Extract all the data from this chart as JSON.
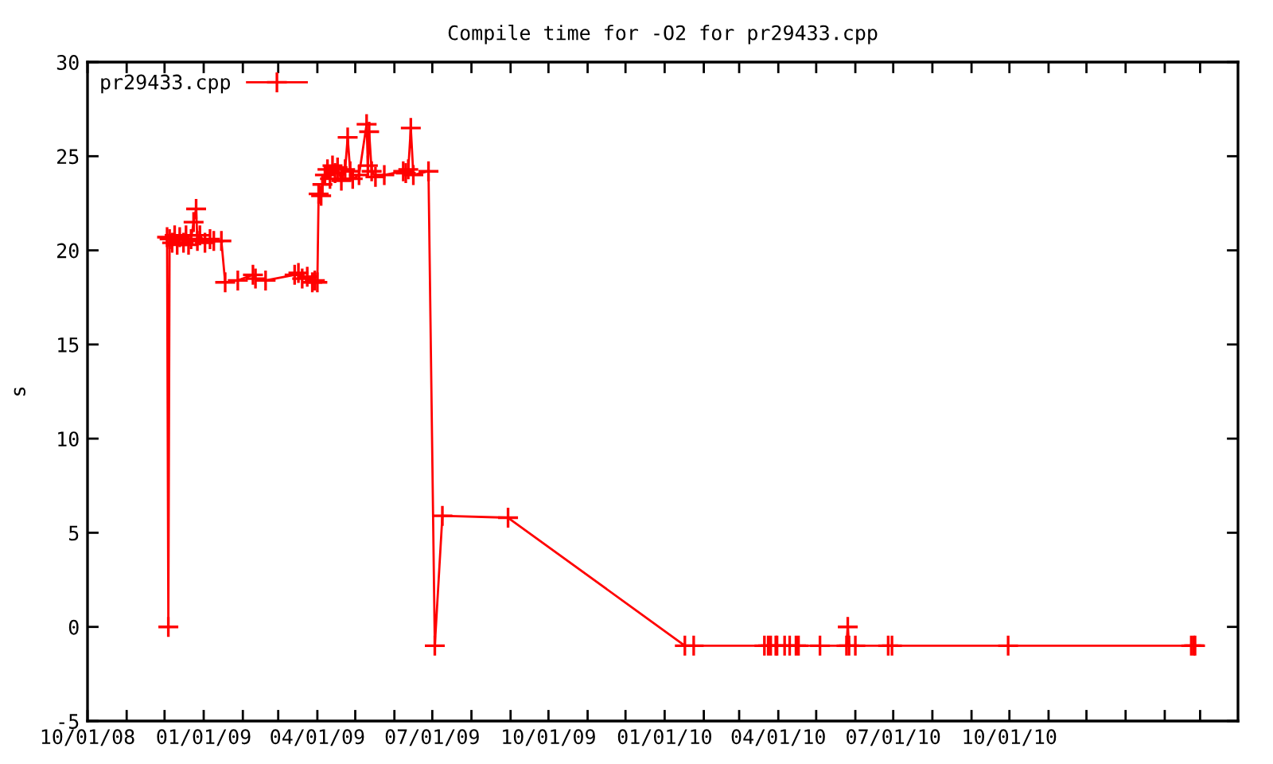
{
  "chart_data": {
    "type": "line",
    "title": "Compile time for -O2 for pr29433.cpp",
    "ylabel": "s",
    "legend": "top left",
    "marker": "cross",
    "line_style": "solid",
    "grid": false,
    "xlim": [
      "2008-10-01",
      "2011-03-31"
    ],
    "ylim": [
      -5,
      30
    ],
    "yticks": [
      -5,
      0,
      5,
      10,
      15,
      20,
      25,
      30
    ],
    "xticks": [
      {
        "value": "2008-10-01",
        "label": "10/01/08"
      },
      {
        "value": "2008-11-01",
        "label": null
      },
      {
        "value": "2008-12-01",
        "label": null
      },
      {
        "value": "2009-01-01",
        "label": "01/01/09"
      },
      {
        "value": "2009-02-01",
        "label": null
      },
      {
        "value": "2009-03-01",
        "label": null
      },
      {
        "value": "2009-04-01",
        "label": "04/01/09"
      },
      {
        "value": "2009-05-01",
        "label": null
      },
      {
        "value": "2009-06-01",
        "label": null
      },
      {
        "value": "2009-07-01",
        "label": "07/01/09"
      },
      {
        "value": "2009-08-01",
        "label": null
      },
      {
        "value": "2009-09-01",
        "label": null
      },
      {
        "value": "2009-10-01",
        "label": "10/01/09"
      },
      {
        "value": "2009-11-01",
        "label": null
      },
      {
        "value": "2009-12-01",
        "label": null
      },
      {
        "value": "2010-01-01",
        "label": "01/01/10"
      },
      {
        "value": "2010-02-01",
        "label": null
      },
      {
        "value": "2010-03-01",
        "label": null
      },
      {
        "value": "2010-04-01",
        "label": "04/01/10"
      },
      {
        "value": "2010-05-01",
        "label": null
      },
      {
        "value": "2010-06-01",
        "label": null
      },
      {
        "value": "2010-07-01",
        "label": "07/01/10"
      },
      {
        "value": "2010-08-01",
        "label": null
      },
      {
        "value": "2010-09-01",
        "label": null
      },
      {
        "value": "2010-10-01",
        "label": "10/01/10"
      },
      {
        "value": "2010-11-01",
        "label": null
      },
      {
        "value": "2010-12-01",
        "label": null
      },
      {
        "value": "2011-01-01",
        "label": null
      },
      {
        "value": "2011-02-01",
        "label": null
      },
      {
        "value": "2011-03-01",
        "label": null
      }
    ],
    "series": [
      {
        "name": "pr29433.cpp",
        "color": "#ff0000",
        "x": [
          "2008-12-03",
          "2008-12-04",
          "2008-12-05",
          "2008-12-07",
          "2008-12-09",
          "2008-12-11",
          "2008-12-13",
          "2008-12-16",
          "2008-12-18",
          "2008-12-20",
          "2008-12-22",
          "2008-12-24",
          "2008-12-26",
          "2008-12-27",
          "2008-12-29",
          "2009-01-02",
          "2009-01-06",
          "2009-01-09",
          "2009-01-15",
          "2009-01-18",
          "2009-01-28",
          "2009-02-09",
          "2009-02-11",
          "2009-02-19",
          "2009-03-14",
          "2009-03-17",
          "2009-03-20",
          "2009-03-24",
          "2009-03-28",
          "2009-03-30",
          "2009-04-01",
          "2009-04-02",
          "2009-04-04",
          "2009-04-05",
          "2009-04-07",
          "2009-04-09",
          "2009-04-11",
          "2009-04-13",
          "2009-04-15",
          "2009-04-17",
          "2009-04-20",
          "2009-04-23",
          "2009-04-25",
          "2009-04-27",
          "2009-04-29",
          "2009-05-04",
          "2009-05-10",
          "2009-05-11",
          "2009-05-12",
          "2009-05-14",
          "2009-05-17",
          "2009-05-24",
          "2009-06-08",
          "2009-06-10",
          "2009-06-12",
          "2009-06-14",
          "2009-06-16",
          "2009-06-28",
          "2009-07-03",
          "2009-07-09",
          "2009-08-30",
          "2010-01-17",
          "2010-01-24",
          "2010-03-21",
          "2010-03-24",
          "2010-03-26",
          "2010-03-30",
          "2010-03-31",
          "2010-04-06",
          "2010-04-10",
          "2010-04-15",
          "2010-04-17",
          "2010-05-04",
          "2010-05-25",
          "2010-05-26",
          "2010-05-27",
          "2010-06-01",
          "2010-06-27",
          "2010-06-30",
          "2010-09-30",
          "2011-02-22",
          "2011-02-24",
          "2011-02-25"
        ],
        "values": [
          20.7,
          0,
          20.6,
          20.4,
          20.8,
          20.3,
          20.7,
          20.4,
          20.8,
          20.3,
          20.6,
          21.5,
          22.2,
          20.5,
          20.8,
          20.4,
          20.6,
          20.5,
          20.5,
          18.3,
          18.4,
          18.7,
          18.5,
          18.4,
          18.7,
          18.8,
          18.5,
          18.6,
          18.3,
          18.4,
          18.3,
          23.0,
          22.9,
          23.5,
          24.0,
          24.3,
          23.8,
          24.5,
          24.1,
          24.4,
          23.7,
          24.3,
          26.0,
          24.2,
          23.8,
          24.0,
          26.7,
          24.5,
          26.3,
          24.2,
          23.9,
          24.0,
          24.2,
          24.1,
          24.3,
          26.5,
          24.0,
          24.2,
          -1,
          5.9,
          5.8,
          -1,
          -1,
          -1,
          -1,
          -1,
          -1,
          -1,
          -1,
          -1,
          -1,
          -1,
          -1,
          -1,
          0,
          -1,
          -1,
          -1,
          -1,
          -1,
          -1,
          -1,
          -1
        ]
      }
    ]
  }
}
